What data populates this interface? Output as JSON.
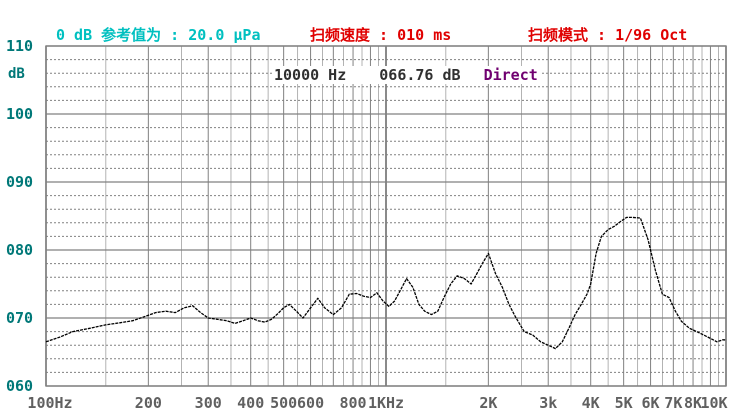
{
  "header": {
    "reference": "0 dB 参考值为 : 20.0 μPa",
    "speed": "扫频速度 : 010 ms",
    "mode": "扫频模式 : 1/96 Oct"
  },
  "readout": {
    "frequency": "10000 Hz",
    "level": "066.76 dB",
    "mode": "Direct"
  },
  "colors": {
    "grid": "#808080",
    "trace": "#000000",
    "ytick": "#007878",
    "header_cyan": "#00c0c0",
    "header_red": "#e00000",
    "mode_text": "#700070"
  },
  "chart_data": {
    "type": "line",
    "xscale": "log",
    "xlim": [
      100,
      10000
    ],
    "ylim": [
      60,
      110
    ],
    "ylabel": "dB",
    "grid": true,
    "ytick_labels": [
      "110",
      "100",
      "090",
      "080",
      "070",
      "060"
    ],
    "ytick_values": [
      110,
      100,
      90,
      80,
      70,
      60
    ],
    "xtick_labels": [
      "100Hz",
      "200",
      "300",
      "400",
      "500",
      "600",
      "800",
      "1KHz",
      "2K",
      "3k",
      "4K",
      "5K",
      "6K",
      "7K",
      "8K",
      "10K"
    ],
    "xtick_values": [
      100,
      200,
      300,
      400,
      500,
      600,
      800,
      1000,
      2000,
      3000,
      4000,
      5000,
      6000,
      7000,
      8000,
      10000
    ],
    "series": [
      {
        "x": [
          100,
          110,
          120,
          135,
          150,
          165,
          180,
          195,
          210,
          225,
          240,
          255,
          270,
          285,
          300,
          320,
          340,
          360,
          380,
          400,
          420,
          440,
          460,
          480,
          500,
          520,
          545,
          570,
          600,
          630,
          660,
          700,
          740,
          780,
          820,
          860,
          900,
          940,
          980,
          1020,
          1060,
          1100,
          1150,
          1200,
          1250,
          1300,
          1360,
          1420,
          1480,
          1550,
          1620,
          1700,
          1780,
          1850,
          1920,
          2000,
          2100,
          2200,
          2300,
          2400,
          2550,
          2700,
          2850,
          3000,
          3150,
          3300,
          3450,
          3600,
          3750,
          3900,
          4000,
          4150,
          4300,
          4500,
          4700,
          4900,
          5100,
          5300,
          5600,
          5900,
          6200,
          6500,
          6800,
          7100,
          7400,
          7800,
          8200,
          8600,
          9000,
          9400,
          9800,
          10000
        ],
        "y": [
          66.5,
          67.2,
          68.0,
          68.5,
          69.0,
          69.3,
          69.6,
          70.2,
          70.8,
          71.0,
          70.8,
          71.5,
          71.8,
          70.8,
          70.0,
          69.8,
          69.6,
          69.2,
          69.6,
          70.0,
          69.6,
          69.4,
          69.8,
          70.6,
          71.5,
          72.0,
          71.0,
          70.0,
          71.5,
          72.9,
          71.5,
          70.5,
          71.5,
          73.5,
          73.6,
          73.2,
          73.0,
          73.7,
          72.5,
          71.7,
          72.5,
          74.0,
          75.8,
          74.5,
          72.0,
          71.0,
          70.5,
          71.0,
          73.0,
          75.0,
          76.2,
          75.8,
          75.0,
          76.5,
          78.0,
          79.5,
          76.5,
          74.5,
          72.0,
          70.2,
          68.0,
          67.5,
          66.5,
          66.0,
          65.5,
          66.5,
          68.5,
          70.5,
          72.0,
          73.5,
          75.0,
          79.5,
          82.0,
          83.0,
          83.5,
          84.2,
          84.8,
          84.8,
          84.7,
          81.5,
          77.0,
          73.5,
          73.0,
          71.0,
          69.5,
          68.5,
          68.0,
          67.5,
          67.0,
          66.5,
          66.8,
          66.76
        ]
      }
    ]
  }
}
